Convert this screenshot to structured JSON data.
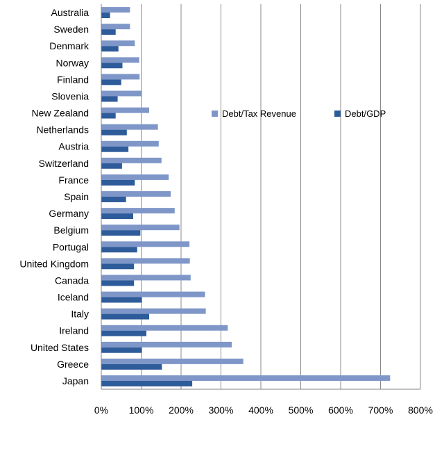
{
  "chart_data": {
    "type": "bar",
    "orientation": "horizontal",
    "categories": [
      "Australia",
      "Sweden",
      "Denmark",
      "Norway",
      "Finland",
      "Slovenia",
      "New Zealand",
      "Netherlands",
      "Austria",
      "Switzerland",
      "France",
      "Spain",
      "Germany",
      "Belgium",
      "Portugal",
      "United Kingdom",
      "Canada",
      "Iceland",
      "Italy",
      "Ireland",
      "United States",
      "Greece",
      "Japan"
    ],
    "series": [
      {
        "name": "Debt/Tax Revenue",
        "color": "#7f97c8",
        "values": [
          72,
          72,
          84,
          95,
          96,
          102,
          120,
          142,
          144,
          151,
          169,
          174,
          184,
          196,
          221,
          222,
          224,
          260,
          262,
          317,
          327,
          356,
          724
        ]
      },
      {
        "name": "Debt/GDP",
        "color": "#2e5b9a",
        "values": [
          22,
          36,
          43,
          53,
          50,
          41,
          36,
          64,
          68,
          52,
          84,
          62,
          80,
          98,
          90,
          82,
          82,
          102,
          120,
          113,
          102,
          152,
          228
        ]
      }
    ],
    "xlim": [
      0,
      800
    ],
    "xticks": [
      "0%",
      "100%",
      "200%",
      "300%",
      "400%",
      "500%",
      "600%",
      "700%",
      "800%"
    ],
    "grid": true,
    "legend_position": "middle-right"
  }
}
